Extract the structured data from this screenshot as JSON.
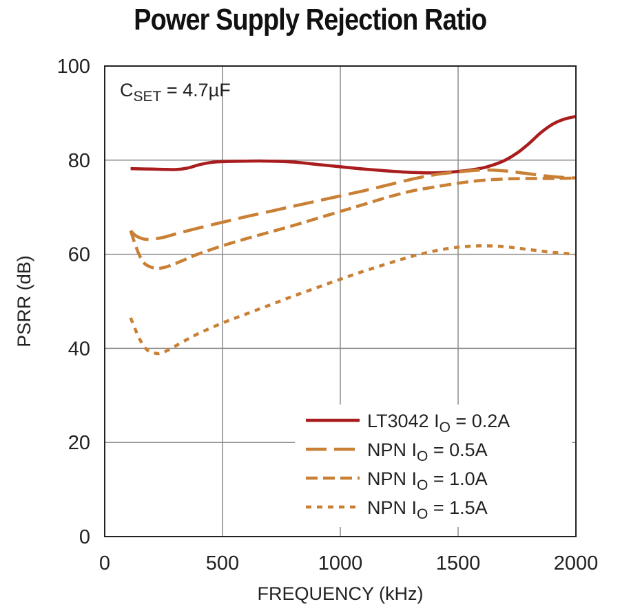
{
  "chart_data": {
    "type": "line",
    "title": "Power Supply Rejection Ratio",
    "xlabel": "FREQUENCY (kHz)",
    "ylabel": "PSRR (dB)",
    "xlim": [
      0,
      2000
    ],
    "ylim": [
      0,
      100
    ],
    "xticks": [
      "0",
      "500",
      "1000",
      "1500",
      "2000"
    ],
    "yticks": [
      "0",
      "20",
      "40",
      "60",
      "80",
      "100"
    ],
    "grid": true,
    "legend_position": "bottom-right",
    "annotation": {
      "main": "C",
      "sub": "SET",
      "rest": " = 4.7µF"
    },
    "series": [
      {
        "name": "LT3042 IO = 0.2A",
        "legend": {
          "pre": "LT3042 I",
          "sub": "O",
          "post": " = 0.2A"
        },
        "color": "#a91d1f",
        "style": "solid",
        "x": [
          110,
          200,
          300,
          350,
          400,
          450,
          500,
          600,
          700,
          800,
          900,
          1000,
          1100,
          1200,
          1300,
          1400,
          1500,
          1600,
          1650,
          1700,
          1750,
          1800,
          1850,
          1900,
          1950,
          2000
        ],
        "y": [
          78.2,
          78.1,
          78.0,
          78.3,
          79.0,
          79.5,
          79.7,
          79.8,
          79.8,
          79.6,
          79.1,
          78.6,
          78.1,
          77.7,
          77.4,
          77.3,
          77.6,
          78.3,
          79.0,
          80.0,
          81.5,
          83.5,
          85.8,
          87.6,
          88.7,
          89.3
        ]
      },
      {
        "name": "NPN IO = 0.5A",
        "legend": {
          "pre": "NPN I",
          "sub": "O",
          "post": " = 0.5A"
        },
        "color": "#c98035",
        "style": "long-dash",
        "x": [
          110,
          130,
          150,
          170,
          200,
          250,
          300,
          400,
          500,
          600,
          700,
          800,
          900,
          1000,
          1100,
          1200,
          1300,
          1400,
          1500,
          1600,
          1700,
          1800,
          1900,
          2000
        ],
        "y": [
          65.0,
          64.0,
          63.5,
          63.2,
          63.2,
          63.6,
          64.3,
          65.6,
          66.8,
          68.0,
          69.1,
          70.2,
          71.3,
          72.4,
          73.5,
          74.7,
          75.9,
          76.9,
          77.5,
          77.9,
          77.7,
          77.1,
          76.5,
          76.2
        ]
      },
      {
        "name": "NPN IO = 1.0A",
        "legend": {
          "pre": "NPN I",
          "sub": "O",
          "post": " = 1.0A"
        },
        "color": "#c98035",
        "style": "short-dash",
        "x": [
          110,
          130,
          150,
          170,
          200,
          230,
          260,
          300,
          350,
          400,
          500,
          600,
          700,
          800,
          900,
          1000,
          1100,
          1200,
          1300,
          1400,
          1500,
          1600,
          1700,
          1800,
          1900,
          2000
        ],
        "y": [
          65.0,
          62.0,
          59.5,
          58.0,
          57.2,
          57.0,
          57.3,
          58.0,
          59.1,
          60.1,
          61.8,
          63.3,
          64.7,
          66.1,
          67.6,
          69.1,
          70.6,
          72.1,
          73.4,
          74.3,
          75.1,
          75.7,
          76.0,
          76.1,
          76.1,
          76.2
        ]
      },
      {
        "name": "NPN IO = 1.5A",
        "legend": {
          "pre": "NPN I",
          "sub": "O",
          "post": " = 1.5A"
        },
        "color": "#c98035",
        "style": "dotted",
        "x": [
          110,
          130,
          150,
          170,
          190,
          210,
          230,
          260,
          300,
          350,
          400,
          500,
          600,
          700,
          800,
          900,
          1000,
          1100,
          1200,
          1300,
          1400,
          1500,
          1600,
          1700,
          1800,
          1900,
          2000
        ],
        "y": [
          46.5,
          44.0,
          41.8,
          40.2,
          39.3,
          39.0,
          38.9,
          39.4,
          40.5,
          41.9,
          43.2,
          45.4,
          47.3,
          49.2,
          51.1,
          52.9,
          54.7,
          56.4,
          58.0,
          59.5,
          60.7,
          61.5,
          61.8,
          61.6,
          61.0,
          60.4,
          60.0
        ]
      }
    ]
  }
}
